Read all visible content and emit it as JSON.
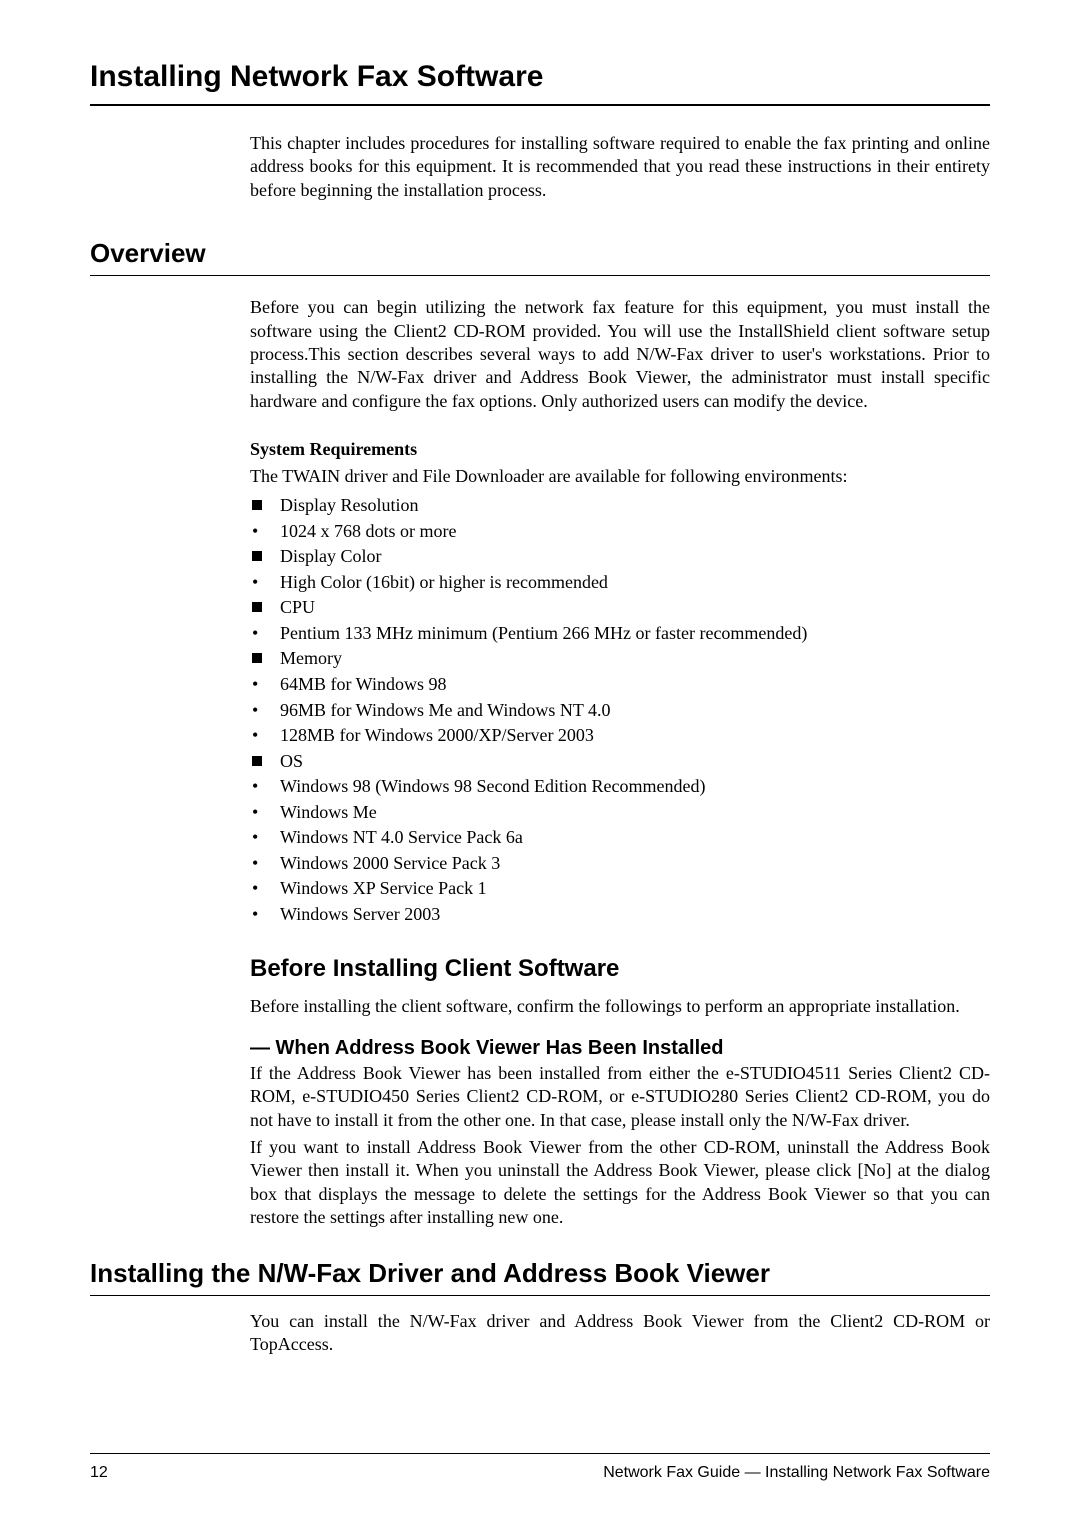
{
  "title": "Installing Network Fax Software",
  "intro": "This chapter includes procedures for installing software required to enable the fax printing and online address books for this equipment. It is recommended that you read these instructions in their entirety before beginning the installation process.",
  "overview": {
    "heading": "Overview",
    "para": "Before you can begin utilizing the network fax feature for this equipment, you must install the software using the Client2 CD-ROM provided. You will use the InstallShield client software setup process.This section describes several ways to add N/W-Fax driver to user's workstations. Prior to installing the N/W-Fax driver and Address Book Viewer, the administrator must install specific hardware and configure the fax options. Only authorized users can modify the device.",
    "sysreq_heading": "System Requirements",
    "sysreq_intro": "The TWAIN driver and File Downloader are available for following environments:",
    "items": [
      {
        "style": "square",
        "text": "Display Resolution"
      },
      {
        "style": "bullet",
        "text": "1024 x 768 dots or more"
      },
      {
        "style": "square",
        "text": "Display Color"
      },
      {
        "style": "bullet",
        "text": "High Color (16bit) or higher is recommended"
      },
      {
        "style": "square",
        "text": "CPU"
      },
      {
        "style": "bullet",
        "text": "Pentium 133 MHz minimum (Pentium 266 MHz or faster recommended)"
      },
      {
        "style": "square",
        "text": "Memory"
      },
      {
        "style": "bullet",
        "text": "64MB for Windows 98"
      },
      {
        "style": "bullet",
        "text": "96MB for Windows Me and Windows NT 4.0"
      },
      {
        "style": "bullet",
        "text": "128MB for Windows 2000/XP/Server 2003"
      },
      {
        "style": "square",
        "text": "OS"
      },
      {
        "style": "bullet",
        "text": "Windows 98 (Windows 98 Second Edition Recommended)"
      },
      {
        "style": "bullet",
        "text": "Windows Me"
      },
      {
        "style": "bullet",
        "text": "Windows NT 4.0 Service Pack 6a"
      },
      {
        "style": "bullet",
        "text": "Windows 2000 Service Pack 3"
      },
      {
        "style": "bullet",
        "text": "Windows XP Service Pack 1"
      },
      {
        "style": "bullet",
        "text": "Windows Server 2003"
      }
    ]
  },
  "before": {
    "heading": "Before Installing Client Software",
    "para": "Before installing the client software, confirm the followings to perform an appropriate installation.",
    "sub_heading": "— When Address Book Viewer Has Been Installed",
    "sub_para1": "If the Address Book Viewer has been installed from either the e-STUDIO4511 Series Client2 CD-ROM, e-STUDIO450 Series Client2 CD-ROM, or e-STUDIO280 Series Client2 CD-ROM, you do not have to install it from the other one.  In that case, please install only the N/W-Fax driver.",
    "sub_para2": "If you want to install Address Book Viewer from the other CD-ROM, uninstall the Address Book Viewer then install it.  When you uninstall the Address Book Viewer, please click [No] at the dialog box that displays the message to delete the settings for the Address Book Viewer so that you can restore the settings after installing new one."
  },
  "install": {
    "heading": "Installing the N/W-Fax Driver and Address Book Viewer",
    "para": "You can install the N/W-Fax driver and Address Book Viewer from the Client2 CD-ROM or TopAccess."
  },
  "footer": {
    "page": "12",
    "label": "Network Fax Guide — Installing Network Fax Software"
  }
}
